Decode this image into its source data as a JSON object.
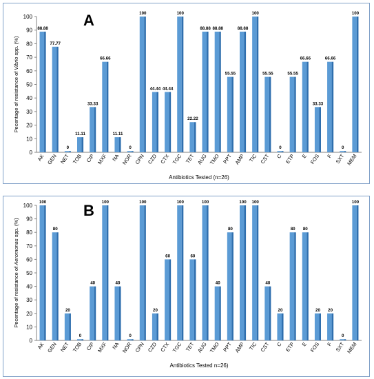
{
  "chart_data": [
    {
      "panel_label": "A",
      "type": "bar",
      "xlabel": "Antibiotics Tested (n=26)",
      "ylabel": "Pecentage of resistance of Vibrio spp. (%)",
      "ylabel_parts": [
        "Pecentage of resistance of ",
        "Vibrio",
        " spp. (%)"
      ],
      "ylim": [
        0,
        100
      ],
      "yticks": [
        0,
        10,
        20,
        30,
        40,
        50,
        60,
        70,
        80,
        90,
        100
      ],
      "categories": [
        "AK",
        "GEN",
        "NET",
        "TOB",
        "CIP",
        "MXF",
        "NA",
        "NOR",
        "CPN",
        "CZD",
        "CTX",
        "TGC",
        "TET",
        "AUG",
        "TMO",
        "PPT",
        "AMP",
        "TIC",
        "CST",
        "C",
        "ETP",
        "E",
        "FOS",
        "F",
        "SXT",
        "MEM"
      ],
      "values": [
        88.88,
        77.77,
        0,
        11.11,
        33.33,
        66.66,
        11.11,
        0,
        100,
        44.44,
        44.44,
        100,
        22.22,
        88.88,
        88.88,
        55.55,
        88.88,
        100,
        55.55,
        0,
        55.55,
        66.66,
        33.33,
        66.66,
        0,
        100
      ],
      "data_labels": [
        "88.88",
        "77.77",
        "0",
        "11.11",
        "33.33",
        "66.66",
        "11.11",
        "0",
        "100",
        "44.44",
        "44.44",
        "100",
        "22.22",
        "88.88",
        "88.88",
        "55.55",
        "88.88",
        "100",
        "55.55",
        "0",
        "55.55",
        "66.66",
        "33.33",
        "66.66",
        "0",
        "100"
      ],
      "grid": false,
      "bar_color": "#5b9bd5"
    },
    {
      "panel_label": "B",
      "type": "bar",
      "xlabel": "Antibiotics Tested n=26)",
      "ylabel": "Pecentage of resistance of Aeromonas spp. (%)",
      "ylabel_parts": [
        "Pecentage of resistance of ",
        "Aeromonas",
        " spp. (%)"
      ],
      "ylim": [
        0,
        100
      ],
      "yticks": [
        0,
        10,
        20,
        30,
        40,
        50,
        60,
        70,
        80,
        90,
        100
      ],
      "categories": [
        "AK",
        "GEN",
        "NET",
        "TOB",
        "CIP",
        "MXF",
        "NA",
        "NOR",
        "CPN",
        "CZD",
        "CTX",
        "TGC",
        "TET",
        "AUG",
        "TMO",
        "PPT",
        "AMP",
        "TIC",
        "CST",
        "C",
        "ETP",
        "E",
        "FOS",
        "F",
        "SXT",
        "MEM"
      ],
      "values": [
        100,
        80,
        20,
        0,
        40,
        100,
        40,
        0,
        100,
        20,
        60,
        100,
        60,
        100,
        40,
        80,
        100,
        100,
        40,
        20,
        80,
        80,
        20,
        20,
        0,
        100
      ],
      "data_labels": [
        "100",
        "80",
        "20",
        "0",
        "40",
        "100",
        "40",
        "0",
        "100",
        "20",
        "60",
        "100",
        "60",
        "100",
        "40",
        "80",
        "100",
        "100",
        "40",
        "20",
        "80",
        "80",
        "20",
        "20",
        "0",
        "100"
      ],
      "grid": false,
      "bar_color": "#5b9bd5"
    }
  ]
}
